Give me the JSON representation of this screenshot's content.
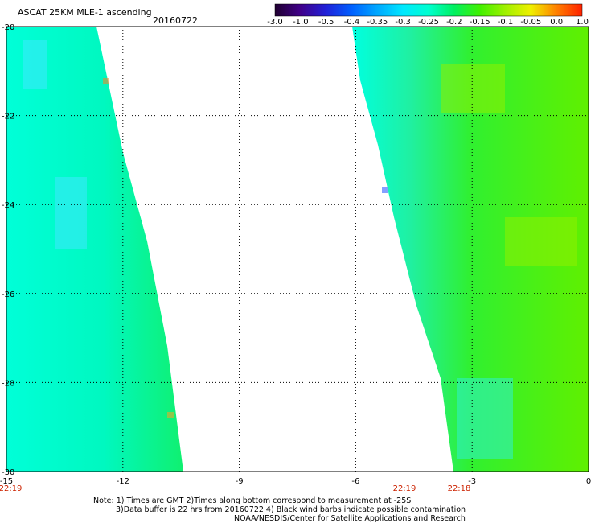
{
  "header": {
    "title": "ASCAT 25KM MLE-1 ascending",
    "date": "20160722"
  },
  "colorbar": {
    "tick_labels": [
      "-3.0",
      "-1.0",
      "-0.5",
      "-0.4",
      "-0.35",
      "-0.3",
      "-0.25",
      "-0.2",
      "-0.15",
      "-0.1",
      "-0.05",
      "0.0",
      "1.0"
    ],
    "colors": [
      "#200030",
      "#40008a",
      "#2020d8",
      "#0060ff",
      "#00a8ff",
      "#00e8ff",
      "#00ffd0",
      "#00f060",
      "#40f000",
      "#a0f000",
      "#f0f000",
      "#ff8000",
      "#ff2000"
    ]
  },
  "map": {
    "lat_labels": [
      "-20",
      "-22",
      "-24",
      "-26",
      "-28",
      "-30"
    ],
    "lon_labels": [
      "-15",
      "-12",
      "-9",
      "-6",
      "-3",
      "0"
    ],
    "time_labels": [
      "22:19",
      "22:19",
      "22:18"
    ],
    "lat_range": [
      -30,
      -20
    ],
    "lon_range": [
      -15,
      0
    ]
  },
  "footer": {
    "note_line1": "Note: 1) Times are GMT 2)Times along bottom correspond to measurement at -25S",
    "note_line2": "3)Data buffer is 22 hrs from 20160722 4) Black wind barbs indicate possible contamination",
    "credit": "NOAA/NESDIS/Center for Satellite Applications and Research"
  }
}
